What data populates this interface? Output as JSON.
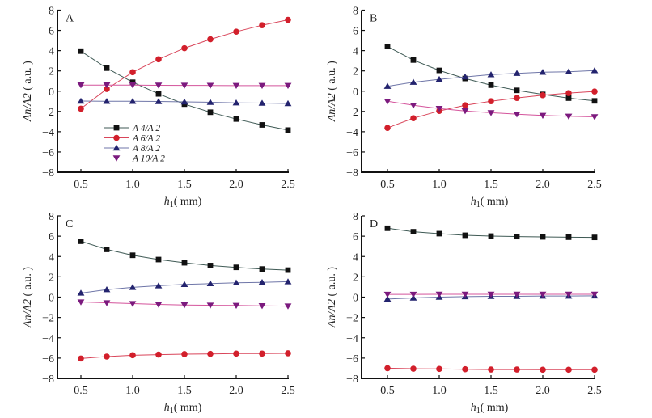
{
  "figure": {
    "series_styles": {
      "A4/A2": {
        "marker": "square",
        "marker_color": "#111111",
        "line_color": "#3f5a55"
      },
      "A6/A2": {
        "marker": "circle",
        "marker_color": "#d21f2b",
        "line_color": "#d9455a"
      },
      "A8/A2": {
        "marker": "triangle-up",
        "marker_color": "#23236e",
        "line_color": "#6f76a8"
      },
      "A10/A2": {
        "marker": "triangle-down",
        "marker_color": "#7b1a7e",
        "line_color": "#d4549c"
      }
    },
    "legend": {
      "panel": "A",
      "placement": "lower-left",
      "entries": [
        "A 4/A 2",
        "A 6/A 2",
        "A 8/A 2",
        "A 10/A 2"
      ]
    }
  },
  "chart_data": [
    {
      "type": "line",
      "panel": "A",
      "title": "A",
      "xlabel": "h1 (mm)",
      "xlabel_main": "h",
      "xlabel_sub": "1",
      "xlabel_unit": "( mm)",
      "ylabel": "An/A2 (a.u.)",
      "xlim": [
        0.275,
        2.5
      ],
      "ylim": [
        -8,
        8
      ],
      "xticks": [
        0.5,
        1.0,
        1.5,
        2.0,
        2.5
      ],
      "xtick_labels": [
        "0.5",
        "1.0",
        "1.5",
        "2.0",
        "2.5"
      ],
      "yticks": [
        8,
        6,
        4,
        2,
        0,
        -2,
        -4,
        -6,
        -8
      ],
      "ytick_labels": [
        "8",
        "6",
        "4",
        "2",
        "0",
        "−2",
        "−4",
        "−6",
        "−8"
      ],
      "grid": false,
      "x": [
        0.5,
        0.75,
        1.0,
        1.25,
        1.5,
        1.75,
        2.0,
        2.25,
        2.5
      ],
      "series": [
        {
          "name": "A4/A2",
          "values": [
            3.95,
            2.27,
            0.88,
            -0.27,
            -1.28,
            -2.08,
            -2.75,
            -3.33,
            -3.84
          ]
        },
        {
          "name": "A6/A2",
          "values": [
            -1.73,
            0.21,
            1.87,
            3.15,
            4.24,
            5.12,
            5.87,
            6.51,
            7.04
          ]
        },
        {
          "name": "A8/A2",
          "values": [
            -0.98,
            -1.0,
            -1.0,
            -1.02,
            -1.06,
            -1.1,
            -1.15,
            -1.18,
            -1.22
          ]
        },
        {
          "name": "A10/A2",
          "values": [
            0.6,
            0.6,
            0.6,
            0.58,
            0.57,
            0.56,
            0.55,
            0.55,
            0.55
          ]
        }
      ]
    },
    {
      "type": "line",
      "panel": "B",
      "title": "B",
      "xlabel": "h1 (mm)",
      "xlabel_main": "h",
      "xlabel_sub": "1",
      "xlabel_unit": "( mm)",
      "ylabel": "An/A2 (a.u.)",
      "xlim": [
        0.275,
        2.5
      ],
      "ylim": [
        -8,
        8
      ],
      "xticks": [
        0.5,
        1.0,
        1.5,
        2.0,
        2.5
      ],
      "xtick_labels": [
        "0.5",
        "1.0",
        "1.5",
        "2.0",
        "2.5"
      ],
      "yticks": [
        8,
        6,
        4,
        2,
        0,
        -2,
        -4,
        -6,
        -8
      ],
      "ytick_labels": [
        "8",
        "6",
        "4",
        "2",
        "0",
        "−2",
        "−4",
        "−6",
        "−8"
      ],
      "grid": false,
      "x": [
        0.5,
        0.75,
        1.0,
        1.25,
        1.5,
        1.75,
        2.0,
        2.25,
        2.5
      ],
      "series": [
        {
          "name": "A4/A2",
          "values": [
            4.4,
            3.07,
            2.05,
            1.25,
            0.59,
            0.08,
            -0.32,
            -0.69,
            -0.96
          ]
        },
        {
          "name": "A6/A2",
          "values": [
            -3.63,
            -2.67,
            -1.95,
            -1.39,
            -0.99,
            -0.67,
            -0.4,
            -0.19,
            -0.03
          ]
        },
        {
          "name": "A8/A2",
          "values": [
            0.48,
            0.88,
            1.17,
            1.41,
            1.63,
            1.76,
            1.87,
            1.92,
            2.03
          ]
        },
        {
          "name": "A10/A2",
          "values": [
            -0.99,
            -1.39,
            -1.71,
            -1.95,
            -2.13,
            -2.27,
            -2.4,
            -2.48,
            -2.53
          ]
        }
      ]
    },
    {
      "type": "line",
      "panel": "C",
      "title": "C",
      "xlabel": "h1 (mm)",
      "xlabel_main": "h",
      "xlabel_sub": "1",
      "xlabel_unit": "( mm)",
      "ylabel": "An/A2 (a.u.)",
      "xlim": [
        0.275,
        2.5
      ],
      "ylim": [
        -8,
        8
      ],
      "xticks": [
        0.5,
        1.0,
        1.5,
        2.0,
        2.5
      ],
      "xtick_labels": [
        "0.5",
        "1.0",
        "1.5",
        "2.0",
        "2.5"
      ],
      "yticks": [
        8,
        6,
        4,
        2,
        0,
        -2,
        -4,
        -6,
        -8
      ],
      "ytick_labels": [
        "8",
        "6",
        "4",
        "2",
        "0",
        "−2",
        "−4",
        "−6",
        "−8"
      ],
      "grid": false,
      "x": [
        0.5,
        0.75,
        1.0,
        1.25,
        1.5,
        1.75,
        2.0,
        2.25,
        2.5
      ],
      "series": [
        {
          "name": "A4/A2",
          "values": [
            5.5,
            4.7,
            4.12,
            3.7,
            3.38,
            3.11,
            2.93,
            2.77,
            2.66
          ]
        },
        {
          "name": "A6/A2",
          "values": [
            -6.04,
            -5.85,
            -5.72,
            -5.66,
            -5.61,
            -5.59,
            -5.56,
            -5.56,
            -5.53
          ]
        },
        {
          "name": "A8/A2",
          "values": [
            0.4,
            0.74,
            0.96,
            1.12,
            1.25,
            1.33,
            1.41,
            1.46,
            1.52
          ]
        },
        {
          "name": "A10/A2",
          "values": [
            -0.48,
            -0.56,
            -0.64,
            -0.72,
            -0.77,
            -0.8,
            -0.82,
            -0.85,
            -0.88
          ]
        }
      ]
    },
    {
      "type": "line",
      "panel": "D",
      "title": "D",
      "xlabel": "h1 (mm)",
      "xlabel_main": "h",
      "xlabel_sub": "1",
      "xlabel_unit": "( mm)",
      "ylabel": "An/A2 (a.u.)",
      "xlim": [
        0.275,
        2.5
      ],
      "ylim": [
        -8,
        8
      ],
      "xticks": [
        0.5,
        1.0,
        1.5,
        2.0,
        2.5
      ],
      "xtick_labels": [
        "0.5",
        "1.0",
        "1.5",
        "2.0",
        "2.5"
      ],
      "yticks": [
        8,
        6,
        4,
        2,
        0,
        -2,
        -4,
        -6,
        -8
      ],
      "ytick_labels": [
        "8",
        "6",
        "4",
        "2",
        "0",
        "−2",
        "−4",
        "−6",
        "−8"
      ],
      "grid": false,
      "x": [
        0.5,
        0.75,
        1.0,
        1.25,
        1.5,
        1.75,
        2.0,
        2.25,
        2.5
      ],
      "series": [
        {
          "name": "A4/A2",
          "values": [
            6.78,
            6.44,
            6.25,
            6.09,
            6.01,
            5.96,
            5.93,
            5.9,
            5.88
          ]
        },
        {
          "name": "A6/A2",
          "values": [
            -7.0,
            -7.05,
            -7.07,
            -7.1,
            -7.13,
            -7.13,
            -7.15,
            -7.15,
            -7.15
          ]
        },
        {
          "name": "A8/A2",
          "values": [
            -0.19,
            -0.08,
            0.0,
            0.05,
            0.08,
            0.08,
            0.11,
            0.11,
            0.13
          ]
        },
        {
          "name": "A10/A2",
          "values": [
            0.27,
            0.27,
            0.28,
            0.28,
            0.28,
            0.28,
            0.28,
            0.28,
            0.28
          ]
        }
      ]
    }
  ]
}
